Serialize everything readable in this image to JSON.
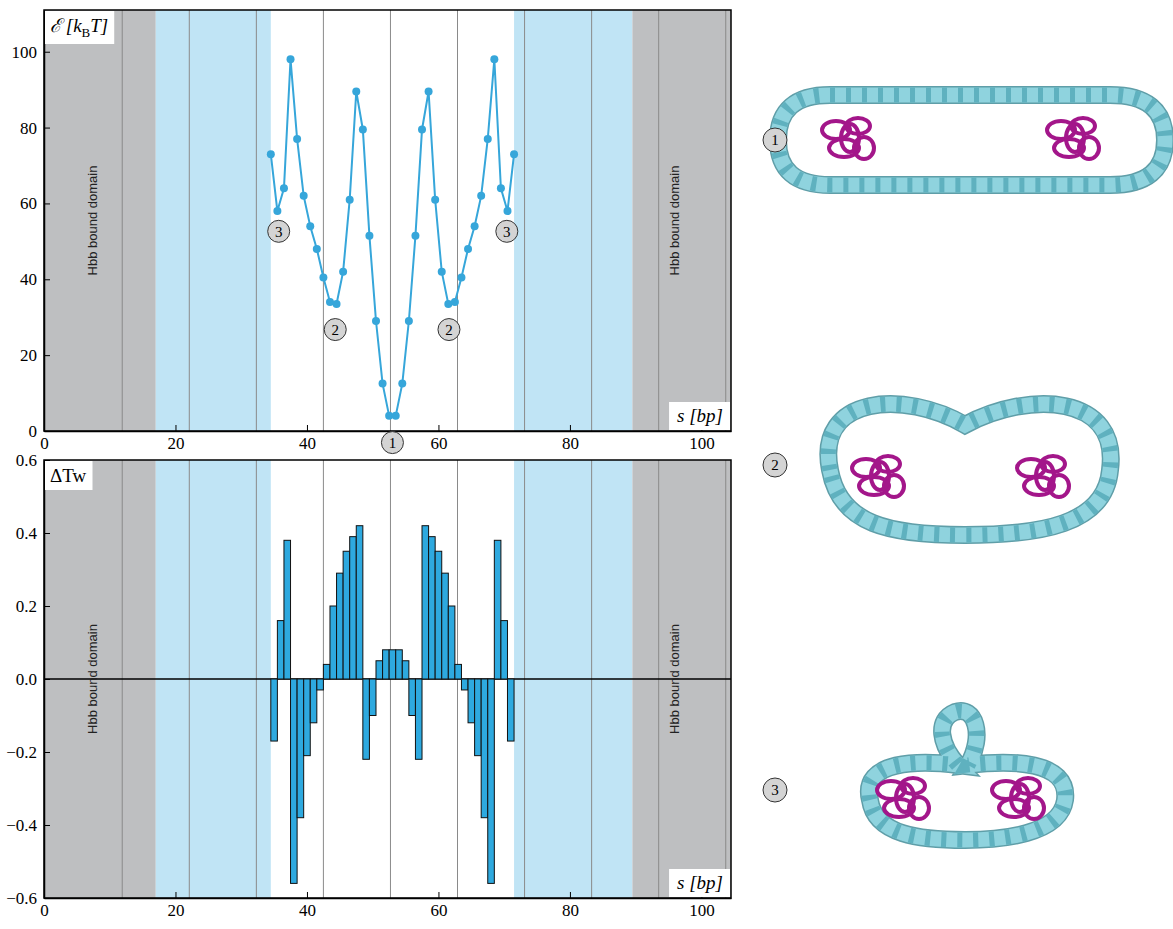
{
  "chart_data": [
    {
      "type": "line",
      "xlabel": "s [bp]",
      "ylabel_parts": [
        "ℰ [k",
        "B",
        "T]"
      ],
      "x": [
        34.5,
        35.5,
        36.5,
        37.5,
        38.5,
        39.5,
        40.5,
        41.5,
        42.5,
        43.5,
        44.5,
        45.5,
        46.5,
        47.5,
        48.5,
        49.5,
        50.5,
        51.5,
        52.5,
        53.5,
        54.5,
        55.5,
        56.5,
        57.5,
        58.5,
        59.5,
        60.5,
        61.5,
        62.5,
        63.5,
        64.5,
        65.5,
        66.5,
        67.5,
        68.5,
        69.5,
        70.5,
        71.5
      ],
      "values": [
        73,
        58,
        64,
        98,
        77,
        62,
        54,
        48,
        40.5,
        34,
        33.5,
        42,
        61,
        89.5,
        79.5,
        51.5,
        29,
        12.5,
        4,
        4,
        12.5,
        29,
        51.5,
        79.5,
        89.5,
        61,
        42,
        33.5,
        34,
        40.5,
        48,
        54,
        62,
        77,
        98,
        64,
        58,
        73
      ],
      "color": "#36a6da",
      "marker": "circle",
      "xlim": [
        0,
        104.5
      ],
      "ylim": [
        0,
        111
      ],
      "xticks": [
        0,
        20,
        40,
        60,
        80,
        100
      ],
      "yticks": [
        0,
        20,
        40,
        60,
        80,
        100
      ],
      "regions": [
        {
          "from": 0,
          "to": 17,
          "color": "#bebfc1",
          "label": "Hbb bound domain"
        },
        {
          "from": 17,
          "to": 34.5,
          "color": "#c0e4f5"
        },
        {
          "from": 71.5,
          "to": 89.5,
          "color": "#c0e4f5"
        },
        {
          "from": 89.5,
          "to": 104.5,
          "color": "#bebfc1",
          "label": "Hbb bound domain"
        }
      ],
      "vlines": [
        11.9,
        22.1,
        32.3,
        42.5,
        52.7,
        62.9,
        73.1,
        83.3,
        93.5,
        103.7
      ],
      "annotations": [
        {
          "text": "3",
          "x": 35.7,
          "y": 53.7
        },
        {
          "text": "2",
          "x": 44.3,
          "y": 27.8
        },
        {
          "text": "1",
          "x": 53,
          "y": -2
        },
        {
          "text": "2",
          "x": 61.6,
          "y": 27.8
        },
        {
          "text": "3",
          "x": 70.4,
          "y": 53.7
        }
      ]
    },
    {
      "type": "bar",
      "xlabel": "s [bp]",
      "ylabel": "ΔTw",
      "bins": [
        34.5,
        35.5,
        36.5,
        37.5,
        38.5,
        39.5,
        40.5,
        41.5,
        42.5,
        43.5,
        44.5,
        45.5,
        46.5,
        47.5,
        48.5,
        49.5,
        50.5,
        51.5,
        52.5,
        53.5,
        54.5,
        55.5,
        56.5,
        57.5,
        58.5,
        59.5,
        60.5,
        61.5,
        62.5,
        63.5,
        64.5,
        65.5,
        66.5,
        67.5,
        68.5,
        69.5,
        70.5,
        71.5
      ],
      "values": [
        -0.17,
        0.16,
        0.38,
        -0.56,
        -0.38,
        -0.21,
        -0.12,
        -0.03,
        0.04,
        0.2,
        0.29,
        0.35,
        0.39,
        0.42,
        -0.22,
        -0.1,
        0.05,
        0.08,
        0.08,
        0.08,
        0.05,
        -0.1,
        -0.22,
        0.42,
        0.39,
        0.35,
        0.29,
        0.2,
        0.04,
        -0.03,
        -0.12,
        -0.21,
        -0.38,
        -0.56,
        0.38,
        0.16,
        -0.17
      ],
      "color": "#2ea9df",
      "xlim": [
        0,
        104.5
      ],
      "ylim": [
        -0.6,
        0.6
      ],
      "xticks": [
        0,
        20,
        40,
        60,
        80,
        100
      ],
      "yticks": [
        {
          "value": -0.6,
          "label": "−0.6"
        },
        {
          "value": -0.4,
          "label": "−0.4"
        },
        {
          "value": -0.2,
          "label": "−0.2"
        },
        {
          "value": 0,
          "label": "0.0"
        },
        0.2,
        0.4,
        0.6
      ],
      "hlines": [
        0
      ],
      "regions": [
        {
          "from": 0,
          "to": 17,
          "color": "#bebfc1",
          "label": "Hbb bound domain"
        },
        {
          "from": 17,
          "to": 34.5,
          "color": "#c0e4f5"
        },
        {
          "from": 71.5,
          "to": 89.5,
          "color": "#c0e4f5"
        },
        {
          "from": 89.5,
          "to": 104.5,
          "color": "#bebfc1",
          "label": "Hbb bound domain"
        }
      ],
      "vlines": [
        11.9,
        22.1,
        32.3,
        42.5,
        52.7,
        62.9,
        73.1,
        83.3,
        93.5,
        103.7
      ]
    }
  ],
  "structures": [
    {
      "label": "1"
    },
    {
      "label": "2"
    },
    {
      "label": "3"
    }
  ]
}
